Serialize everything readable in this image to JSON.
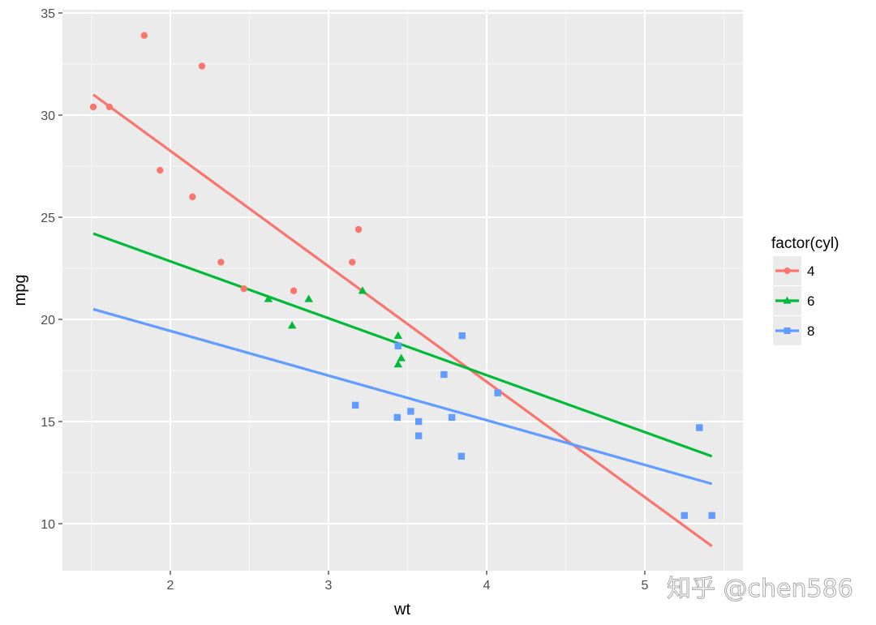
{
  "chart_data": {
    "type": "scatter",
    "title": "",
    "xlabel": "wt",
    "ylabel": "mpg",
    "xlim": [
      1.35,
      5.6
    ],
    "ylim": [
      7.6,
      35.3
    ],
    "x_ticks": [
      2,
      3,
      4,
      5
    ],
    "y_ticks": [
      10,
      15,
      20,
      25,
      30,
      35
    ],
    "grid": true,
    "legend": {
      "title": "factor(cyl)",
      "position": "right",
      "entries": [
        "4",
        "6",
        "8"
      ]
    },
    "series": [
      {
        "name": "4",
        "color": "#F8766D",
        "marker": "circle",
        "points": [
          [
            2.32,
            22.8
          ],
          [
            3.19,
            24.4
          ],
          [
            3.15,
            22.8
          ],
          [
            2.2,
            32.4
          ],
          [
            1.615,
            30.4
          ],
          [
            1.835,
            33.9
          ],
          [
            2.465,
            21.5
          ],
          [
            1.935,
            27.3
          ],
          [
            2.14,
            26.0
          ],
          [
            1.513,
            30.4
          ],
          [
            2.78,
            21.4
          ]
        ],
        "fit_line": [
          [
            1.513,
            31.0
          ],
          [
            5.424,
            8.9
          ]
        ]
      },
      {
        "name": "6",
        "color": "#00BA38",
        "marker": "triangle",
        "points": [
          [
            2.62,
            21.0
          ],
          [
            2.875,
            21.0
          ],
          [
            3.215,
            21.4
          ],
          [
            3.46,
            18.1
          ],
          [
            3.44,
            19.2
          ],
          [
            3.44,
            17.8
          ],
          [
            2.77,
            19.7
          ]
        ],
        "fit_line": [
          [
            1.513,
            24.2
          ],
          [
            5.424,
            13.3
          ]
        ]
      },
      {
        "name": "8",
        "color": "#619CFF",
        "marker": "square",
        "points": [
          [
            3.44,
            18.7
          ],
          [
            3.57,
            14.3
          ],
          [
            4.07,
            16.4
          ],
          [
            3.73,
            17.3
          ],
          [
            3.78,
            15.2
          ],
          [
            5.25,
            10.4
          ],
          [
            5.424,
            10.4
          ],
          [
            5.345,
            14.7
          ],
          [
            3.52,
            15.5
          ],
          [
            3.435,
            15.2
          ],
          [
            3.84,
            13.3
          ],
          [
            3.845,
            19.2
          ],
          [
            3.17,
            15.8
          ],
          [
            3.57,
            15.0
          ]
        ],
        "fit_line": [
          [
            1.513,
            20.5
          ],
          [
            5.424,
            11.95
          ]
        ]
      }
    ]
  },
  "axes": {
    "x_title": "wt",
    "y_title": "mpg",
    "x_tick_labels": [
      "2",
      "3",
      "4",
      "5"
    ],
    "y_tick_labels": [
      "10",
      "15",
      "20",
      "25",
      "30",
      "35"
    ]
  },
  "legend": {
    "title": "factor(cyl)",
    "items": [
      {
        "label": "4",
        "color": "#F8766D",
        "marker": "circle"
      },
      {
        "label": "6",
        "color": "#00BA38",
        "marker": "triangle"
      },
      {
        "label": "8",
        "color": "#619CFF",
        "marker": "square"
      }
    ]
  },
  "watermark": {
    "text": "知乎 @chen586"
  },
  "theme": {
    "panel_bg": "#EBEBEB",
    "grid_major": "#FFFFFF",
    "grid_minor": "#F5F5F5"
  }
}
